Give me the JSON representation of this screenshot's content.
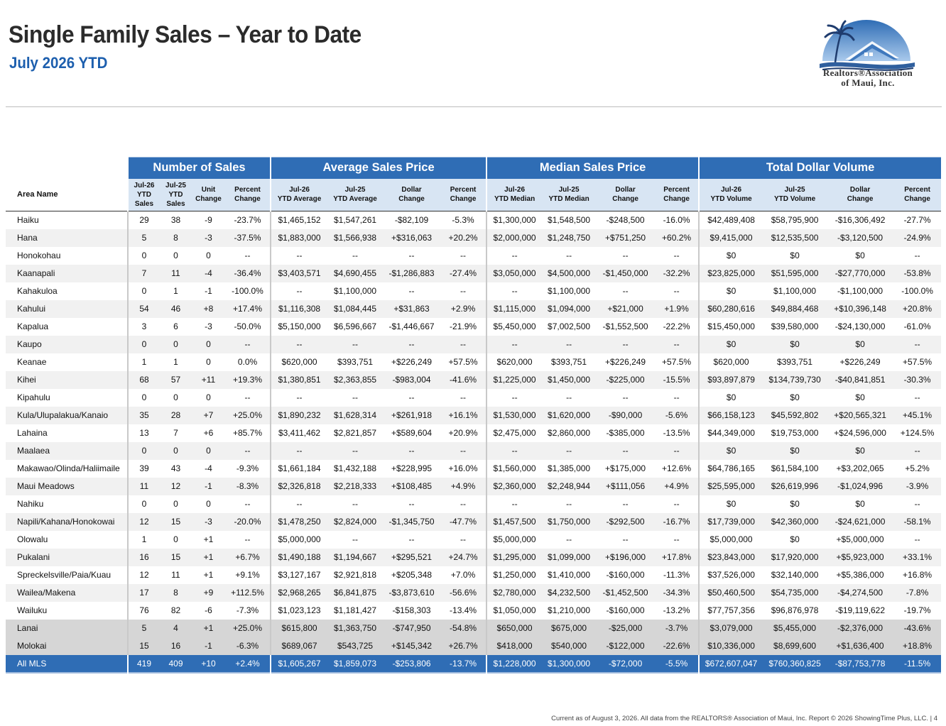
{
  "header": {
    "title": "Single Family Sales – Year to Date",
    "subtitle": "July 2026 YTD"
  },
  "logo": {
    "line1": "Realtors®Association",
    "line2": "of Maui, Inc.",
    "colors": {
      "sky": "#4a86c8",
      "roof": "#3f78bd",
      "ocean": "#2f5f9e",
      "palm": "#1f3c6e"
    }
  },
  "colors": {
    "group_header": "#2f6db5",
    "sub_header": "#d8e5f3",
    "row_alt": "#f1f1f1",
    "row_region": "#d6d6d6"
  },
  "table": {
    "area_header": "Area Name",
    "groups": [
      "Number of Sales",
      "Average Sales Price",
      "Median Sales Price",
      "Total Dollar Volume"
    ],
    "columns": [
      [
        "Jul-26",
        "YTD",
        "Sales"
      ],
      [
        "Jul-25",
        "YTD",
        "Sales"
      ],
      [
        "Unit",
        "Change"
      ],
      [
        "Percent",
        "Change"
      ],
      [
        "Jul-26",
        "YTD Average"
      ],
      [
        "Jul-25",
        "YTD Average"
      ],
      [
        "Dollar",
        "Change"
      ],
      [
        "Percent",
        "Change"
      ],
      [
        "Jul-26",
        "YTD Median"
      ],
      [
        "Jul-25",
        "YTD Median"
      ],
      [
        "Dollar",
        "Change"
      ],
      [
        "Percent",
        "Change"
      ],
      [
        "Jul-26",
        "YTD Volume"
      ],
      [
        "Jul-25",
        "YTD Volume"
      ],
      [
        "Dollar",
        "Change"
      ],
      [
        "Percent",
        "Change"
      ]
    ],
    "rows": [
      {
        "area": "Haiku",
        "cells": [
          "29",
          "38",
          "-9",
          "-23.7%",
          "$1,465,152",
          "$1,547,261",
          "-$82,109",
          "-5.3%",
          "$1,300,000",
          "$1,548,500",
          "-$248,500",
          "-16.0%",
          "$42,489,408",
          "$58,795,900",
          "-$16,306,492",
          "-27.7%"
        ]
      },
      {
        "area": "Hana",
        "cells": [
          "5",
          "8",
          "-3",
          "-37.5%",
          "$1,883,000",
          "$1,566,938",
          "+$316,063",
          "+20.2%",
          "$2,000,000",
          "$1,248,750",
          "+$751,250",
          "+60.2%",
          "$9,415,000",
          "$12,535,500",
          "-$3,120,500",
          "-24.9%"
        ]
      },
      {
        "area": "Honokohau",
        "cells": [
          "0",
          "0",
          "0",
          "--",
          "--",
          "--",
          "--",
          "--",
          "--",
          "--",
          "--",
          "--",
          "$0",
          "$0",
          "$0",
          "--"
        ]
      },
      {
        "area": "Kaanapali",
        "cells": [
          "7",
          "11",
          "-4",
          "-36.4%",
          "$3,403,571",
          "$4,690,455",
          "-$1,286,883",
          "-27.4%",
          "$3,050,000",
          "$4,500,000",
          "-$1,450,000",
          "-32.2%",
          "$23,825,000",
          "$51,595,000",
          "-$27,770,000",
          "-53.8%"
        ]
      },
      {
        "area": "Kahakuloa",
        "cells": [
          "0",
          "1",
          "-1",
          "-100.0%",
          "--",
          "$1,100,000",
          "--",
          "--",
          "--",
          "$1,100,000",
          "--",
          "--",
          "$0",
          "$1,100,000",
          "-$1,100,000",
          "-100.0%"
        ]
      },
      {
        "area": "Kahului",
        "cells": [
          "54",
          "46",
          "+8",
          "+17.4%",
          "$1,116,308",
          "$1,084,445",
          "+$31,863",
          "+2.9%",
          "$1,115,000",
          "$1,094,000",
          "+$21,000",
          "+1.9%",
          "$60,280,616",
          "$49,884,468",
          "+$10,396,148",
          "+20.8%"
        ]
      },
      {
        "area": "Kapalua",
        "cells": [
          "3",
          "6",
          "-3",
          "-50.0%",
          "$5,150,000",
          "$6,596,667",
          "-$1,446,667",
          "-21.9%",
          "$5,450,000",
          "$7,002,500",
          "-$1,552,500",
          "-22.2%",
          "$15,450,000",
          "$39,580,000",
          "-$24,130,000",
          "-61.0%"
        ]
      },
      {
        "area": "Kaupo",
        "cells": [
          "0",
          "0",
          "0",
          "--",
          "--",
          "--",
          "--",
          "--",
          "--",
          "--",
          "--",
          "--",
          "$0",
          "$0",
          "$0",
          "--"
        ]
      },
      {
        "area": "Keanae",
        "cells": [
          "1",
          "1",
          "0",
          "0.0%",
          "$620,000",
          "$393,751",
          "+$226,249",
          "+57.5%",
          "$620,000",
          "$393,751",
          "+$226,249",
          "+57.5%",
          "$620,000",
          "$393,751",
          "+$226,249",
          "+57.5%"
        ]
      },
      {
        "area": "Kihei",
        "cells": [
          "68",
          "57",
          "+11",
          "+19.3%",
          "$1,380,851",
          "$2,363,855",
          "-$983,004",
          "-41.6%",
          "$1,225,000",
          "$1,450,000",
          "-$225,000",
          "-15.5%",
          "$93,897,879",
          "$134,739,730",
          "-$40,841,851",
          "-30.3%"
        ]
      },
      {
        "area": "Kipahulu",
        "cells": [
          "0",
          "0",
          "0",
          "--",
          "--",
          "--",
          "--",
          "--",
          "--",
          "--",
          "--",
          "--",
          "$0",
          "$0",
          "$0",
          "--"
        ]
      },
      {
        "area": "Kula/Ulupalakua/Kanaio",
        "cells": [
          "35",
          "28",
          "+7",
          "+25.0%",
          "$1,890,232",
          "$1,628,314",
          "+$261,918",
          "+16.1%",
          "$1,530,000",
          "$1,620,000",
          "-$90,000",
          "-5.6%",
          "$66,158,123",
          "$45,592,802",
          "+$20,565,321",
          "+45.1%"
        ]
      },
      {
        "area": "Lahaina",
        "cells": [
          "13",
          "7",
          "+6",
          "+85.7%",
          "$3,411,462",
          "$2,821,857",
          "+$589,604",
          "+20.9%",
          "$2,475,000",
          "$2,860,000",
          "-$385,000",
          "-13.5%",
          "$44,349,000",
          "$19,753,000",
          "+$24,596,000",
          "+124.5%"
        ]
      },
      {
        "area": "Maalaea",
        "cells": [
          "0",
          "0",
          "0",
          "--",
          "--",
          "--",
          "--",
          "--",
          "--",
          "--",
          "--",
          "--",
          "$0",
          "$0",
          "$0",
          "--"
        ]
      },
      {
        "area": "Makawao/Olinda/Haliimaile",
        "cells": [
          "39",
          "43",
          "-4",
          "-9.3%",
          "$1,661,184",
          "$1,432,188",
          "+$228,995",
          "+16.0%",
          "$1,560,000",
          "$1,385,000",
          "+$175,000",
          "+12.6%",
          "$64,786,165",
          "$61,584,100",
          "+$3,202,065",
          "+5.2%"
        ]
      },
      {
        "area": "Maui Meadows",
        "cells": [
          "11",
          "12",
          "-1",
          "-8.3%",
          "$2,326,818",
          "$2,218,333",
          "+$108,485",
          "+4.9%",
          "$2,360,000",
          "$2,248,944",
          "+$111,056",
          "+4.9%",
          "$25,595,000",
          "$26,619,996",
          "-$1,024,996",
          "-3.9%"
        ]
      },
      {
        "area": "Nahiku",
        "cells": [
          "0",
          "0",
          "0",
          "--",
          "--",
          "--",
          "--",
          "--",
          "--",
          "--",
          "--",
          "--",
          "$0",
          "$0",
          "$0",
          "--"
        ]
      },
      {
        "area": "Napili/Kahana/Honokowai",
        "cells": [
          "12",
          "15",
          "-3",
          "-20.0%",
          "$1,478,250",
          "$2,824,000",
          "-$1,345,750",
          "-47.7%",
          "$1,457,500",
          "$1,750,000",
          "-$292,500",
          "-16.7%",
          "$17,739,000",
          "$42,360,000",
          "-$24,621,000",
          "-58.1%"
        ]
      },
      {
        "area": "Olowalu",
        "cells": [
          "1",
          "0",
          "+1",
          "--",
          "$5,000,000",
          "--",
          "--",
          "--",
          "$5,000,000",
          "--",
          "--",
          "--",
          "$5,000,000",
          "$0",
          "+$5,000,000",
          "--"
        ]
      },
      {
        "area": "Pukalani",
        "cells": [
          "16",
          "15",
          "+1",
          "+6.7%",
          "$1,490,188",
          "$1,194,667",
          "+$295,521",
          "+24.7%",
          "$1,295,000",
          "$1,099,000",
          "+$196,000",
          "+17.8%",
          "$23,843,000",
          "$17,920,000",
          "+$5,923,000",
          "+33.1%"
        ]
      },
      {
        "area": "Spreckelsville/Paia/Kuau",
        "cells": [
          "12",
          "11",
          "+1",
          "+9.1%",
          "$3,127,167",
          "$2,921,818",
          "+$205,348",
          "+7.0%",
          "$1,250,000",
          "$1,410,000",
          "-$160,000",
          "-11.3%",
          "$37,526,000",
          "$32,140,000",
          "+$5,386,000",
          "+16.8%"
        ]
      },
      {
        "area": "Wailea/Makena",
        "cells": [
          "17",
          "8",
          "+9",
          "+112.5%",
          "$2,968,265",
          "$6,841,875",
          "-$3,873,610",
          "-56.6%",
          "$2,780,000",
          "$4,232,500",
          "-$1,452,500",
          "-34.3%",
          "$50,460,500",
          "$54,735,000",
          "-$4,274,500",
          "-7.8%"
        ]
      },
      {
        "area": "Wailuku",
        "cells": [
          "76",
          "82",
          "-6",
          "-7.3%",
          "$1,023,123",
          "$1,181,427",
          "-$158,303",
          "-13.4%",
          "$1,050,000",
          "$1,210,000",
          "-$160,000",
          "-13.2%",
          "$77,757,356",
          "$96,876,978",
          "-$19,119,622",
          "-19.7%"
        ]
      },
      {
        "area": "Lanai",
        "kind": "region",
        "cells": [
          "5",
          "4",
          "+1",
          "+25.0%",
          "$615,800",
          "$1,363,750",
          "-$747,950",
          "-54.8%",
          "$650,000",
          "$675,000",
          "-$25,000",
          "-3.7%",
          "$3,079,000",
          "$5,455,000",
          "-$2,376,000",
          "-43.6%"
        ]
      },
      {
        "area": "Molokai",
        "kind": "region",
        "cells": [
          "15",
          "16",
          "-1",
          "-6.3%",
          "$689,067",
          "$543,725",
          "+$145,342",
          "+26.7%",
          "$418,000",
          "$540,000",
          "-$122,000",
          "-22.6%",
          "$10,336,000",
          "$8,699,600",
          "+$1,636,400",
          "+18.8%"
        ]
      },
      {
        "area": "All MLS",
        "kind": "total",
        "cells": [
          "419",
          "409",
          "+10",
          "+2.4%",
          "$1,605,267",
          "$1,859,073",
          "-$253,806",
          "-13.7%",
          "$1,228,000",
          "$1,300,000",
          "-$72,000",
          "-5.5%",
          "$672,607,047",
          "$760,360,825",
          "-$87,753,778",
          "-11.5%"
        ]
      }
    ]
  },
  "footer": "Current as of August 3, 2026. All data from the REALTORS® Association of Maui, Inc. Report © 2026 ShowingTime Plus, LLC.  |  4"
}
